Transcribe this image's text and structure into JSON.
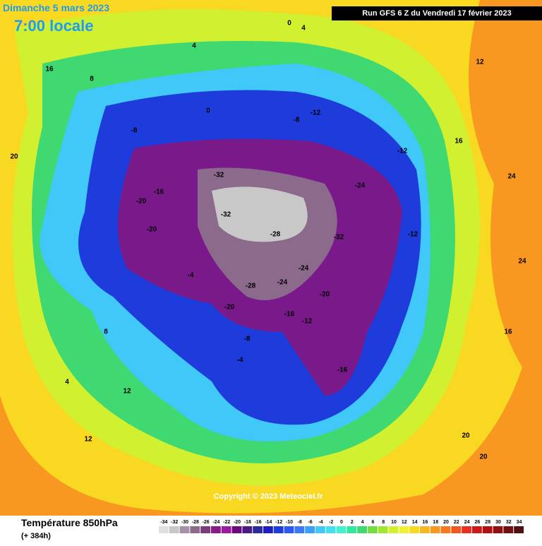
{
  "header": {
    "date": "Dimanche 5 mars 2023",
    "time": "7:00 locale",
    "run": "Run GFS 6 Z du Vendredi 17 février 2023"
  },
  "copyright": "Copyright © 2023 Meteociel.fr",
  "legend": {
    "title": "Température 850hPa",
    "subtitle": "(+ 384h)",
    "scale": [
      -34,
      -32,
      -30,
      -28,
      -26,
      -24,
      -22,
      -20,
      -18,
      -16,
      -14,
      -12,
      -10,
      -8,
      -6,
      -4,
      -2,
      0,
      2,
      4,
      6,
      8,
      10,
      12,
      14,
      16,
      18,
      20,
      22,
      24,
      26,
      28,
      30,
      32,
      34
    ],
    "colors": [
      "#e0e0e0",
      "#c8c8c8",
      "#a890a8",
      "#8c6a8c",
      "#7a3c7a",
      "#8a1a8a",
      "#9a1aa0",
      "#6a0a7a",
      "#4a1a8a",
      "#2a2aa0",
      "#1e1ec8",
      "#1e3cdc",
      "#2a5af0",
      "#3a7af8",
      "#3aa0f8",
      "#40c8f8",
      "#40e0f0",
      "#40f0d0",
      "#30e8a0",
      "#40d870",
      "#70e040",
      "#a0e830",
      "#d0f030",
      "#f0f030",
      "#f8d820",
      "#f8b820",
      "#f89820",
      "#f87820",
      "#f05820",
      "#e83020",
      "#d01818",
      "#b01010",
      "#901010",
      "#701010",
      "#501010"
    ]
  },
  "map": {
    "labels": [
      "-32",
      "-32",
      "-28",
      "-32",
      "-28",
      "-24",
      "-24",
      "-24",
      "-20",
      "-20",
      "-20",
      "-16",
      "-16",
      "-12",
      "-12",
      "-12",
      "-8",
      "-8",
      "-8",
      "-4",
      "-4",
      "0",
      "0",
      "4",
      "4",
      "8",
      "12",
      "12",
      "16",
      "16",
      "20",
      "20",
      "24",
      "24",
      "20",
      "16",
      "12",
      "8",
      "4",
      "-20",
      "-16",
      "-12"
    ]
  }
}
